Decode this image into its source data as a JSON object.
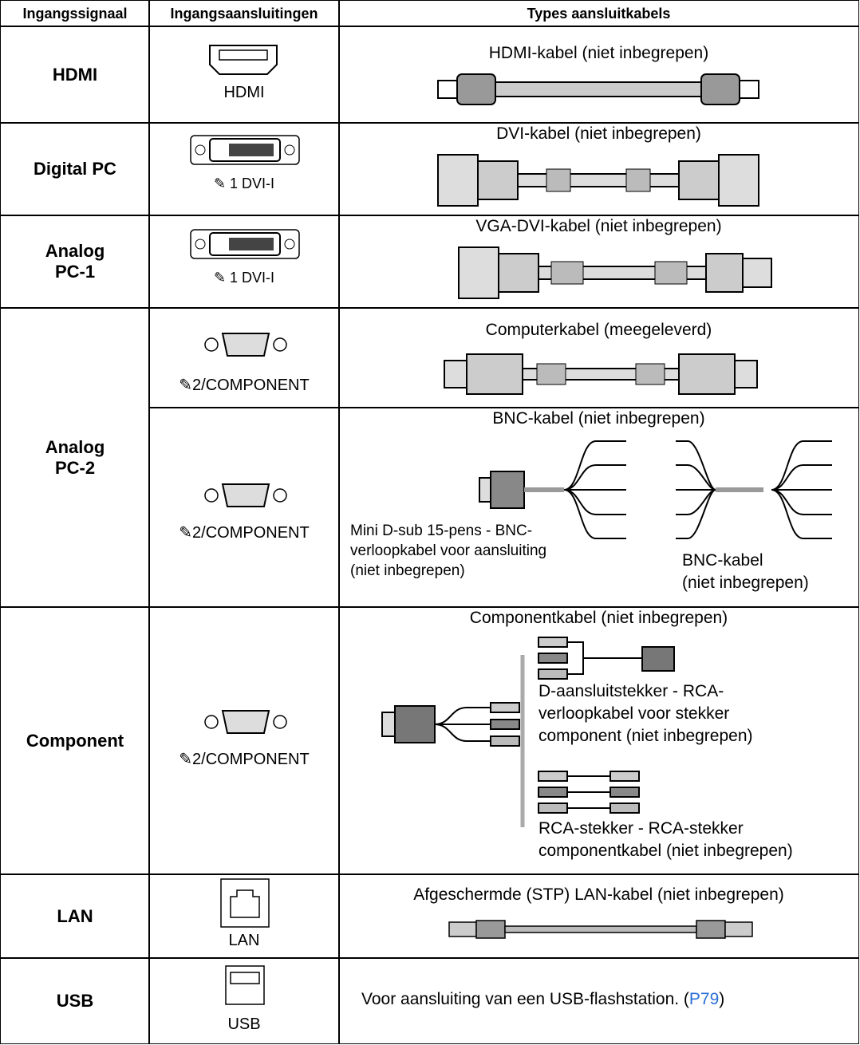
{
  "header": {
    "signal": "Ingangssignaal",
    "ports": "Ingangsaansluitingen",
    "cables": "Types aansluitkabels"
  },
  "rows": [
    {
      "signal": [
        "HDMI"
      ],
      "port": "HDMI",
      "cable": "HDMI-kabel (niet inbegrepen)"
    },
    {
      "signal": [
        "Digital PC"
      ],
      "port": "1 DVI-I",
      "cable": "DVI-kabel (niet inbegrepen)"
    },
    {
      "signal": [
        "Analog",
        "PC-1"
      ],
      "port": "1 DVI-I",
      "cable": "VGA-DVI-kabel (niet inbegrepen)"
    },
    {
      "signal": [
        "Analog",
        "PC-2"
      ],
      "port": "2/COMPONENT",
      "cable": "Computerkabel (meegeleverd)"
    },
    {
      "port": "2/COMPONENT",
      "cable": "BNC-kabel (niet inbegrepen)",
      "notes": [
        [
          "Mini D-sub 15-pens - BNC-",
          "verloopkabel voor aansluiting",
          "(niet inbegrepen)"
        ],
        [
          "BNC-kabel",
          "(niet inbegrepen)"
        ]
      ]
    },
    {
      "signal": [
        "Component"
      ],
      "port": "2/COMPONENT",
      "cable": "Componentkabel (niet inbegrepen)",
      "notes": [
        [
          "D-aansluitstekker - RCA-",
          "verloopkabel voor stekker",
          "component (niet inbegrepen)"
        ],
        [
          "RCA-stekker - RCA-stekker",
          "componentkabel (niet inbegrepen)"
        ]
      ]
    },
    {
      "signal": [
        "LAN"
      ],
      "port": "LAN",
      "cable": "Afgeschermde (STP) LAN-kabel (niet inbegrepen)"
    },
    {
      "signal": [
        "USB"
      ],
      "port": "USB",
      "cable": {
        "before": "Voor aansluiting van een USB-flashstation. (",
        "link": "P79",
        "after": ")"
      }
    }
  ]
}
